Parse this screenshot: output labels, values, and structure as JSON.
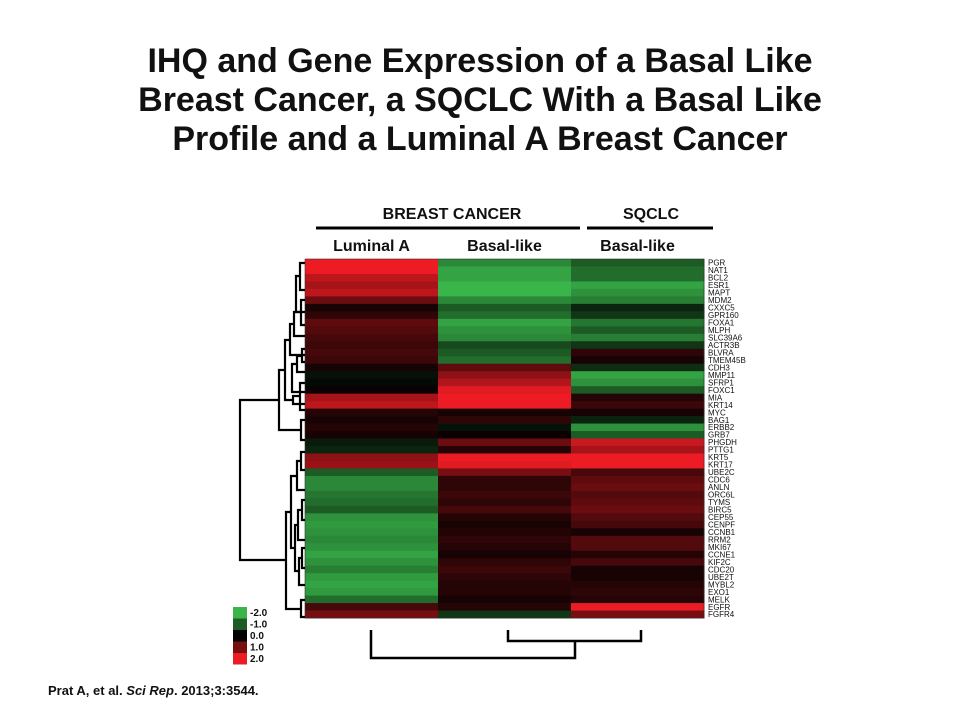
{
  "title_lines": [
    "IHQ and Gene Expression of a Basal Like",
    "Breast Cancer, a SQCLC With a Basal Like",
    "Profile and a Luminal A Breast Cancer"
  ],
  "citation": {
    "before": "Prat A, et al. ",
    "journal": "Sci Rep",
    "after": ". 2013;3:3544."
  },
  "chart_data": {
    "type": "heatmap",
    "group_headers": [
      "BREAST CANCER",
      "SQCLC"
    ],
    "columns": [
      "Luminal A",
      "Basal-like",
      "Basal-like"
    ],
    "genes": [
      "PGR",
      "NAT1",
      "BCL2",
      "ESR1",
      "MAPT",
      "MDM2",
      "CXXC5",
      "GPR160",
      "FOXA1",
      "MLPH",
      "SLC39A6",
      "ACTR3B",
      "BLVRA",
      "TMEM45B",
      "CDH3",
      "MMP11",
      "SFRP1",
      "FOXC1",
      "MIA",
      "KRT14",
      "MYC",
      "BAG1",
      "ERBB2",
      "GRB7",
      "PHGDH",
      "PTTG1",
      "KRT5",
      "KRT17",
      "UBE2C",
      "CDC6",
      "ANLN",
      "ORC6L",
      "TYMS",
      "BIRC5",
      "CEP55",
      "CENPF",
      "CCNB1",
      "RRM2",
      "MKI67",
      "CCNE1",
      "KIF2C",
      "CDC20",
      "UBE2T",
      "MYBL2",
      "EXO1",
      "MELK",
      "EGFR",
      "FGFR4"
    ],
    "values": [
      [
        2.0,
        -1.5,
        -1.0
      ],
      [
        2.0,
        -1.8,
        -1.2
      ],
      [
        1.6,
        -1.8,
        -1.2
      ],
      [
        1.4,
        -2.0,
        -1.8
      ],
      [
        1.6,
        -2.0,
        -1.6
      ],
      [
        0.9,
        -1.5,
        -1.4
      ],
      [
        0.2,
        -1.0,
        -0.4
      ],
      [
        0.4,
        -1.2,
        -0.6
      ],
      [
        0.8,
        -1.8,
        -1.3
      ],
      [
        0.7,
        -1.6,
        -1.0
      ],
      [
        0.6,
        -1.5,
        -1.4
      ],
      [
        0.5,
        -0.8,
        -0.6
      ],
      [
        0.6,
        -1.0,
        0.4
      ],
      [
        0.5,
        -1.2,
        0.2
      ],
      [
        0.2,
        0.8,
        -0.5
      ],
      [
        -0.2,
        1.2,
        -1.8
      ],
      [
        -0.1,
        1.5,
        -1.6
      ],
      [
        0.1,
        1.9,
        -1.0
      ],
      [
        1.4,
        2.0,
        0.3
      ],
      [
        1.6,
        2.0,
        0.5
      ],
      [
        0.3,
        0.2,
        0.2
      ],
      [
        0.2,
        0.4,
        -0.4
      ],
      [
        0.3,
        -0.2,
        -1.6
      ],
      [
        0.2,
        0.1,
        -1.0
      ],
      [
        -0.3,
        0.9,
        1.7
      ],
      [
        -0.4,
        0.3,
        1.4
      ],
      [
        1.2,
        2.0,
        2.0
      ],
      [
        1.3,
        1.9,
        2.0
      ],
      [
        -1.0,
        1.0,
        0.6
      ],
      [
        -1.5,
        0.4,
        0.8
      ],
      [
        -1.5,
        0.4,
        0.9
      ],
      [
        -1.3,
        0.5,
        0.7
      ],
      [
        -1.2,
        0.4,
        0.8
      ],
      [
        -1.0,
        0.6,
        0.9
      ],
      [
        -1.6,
        0.3,
        0.7
      ],
      [
        -1.7,
        0.2,
        0.6
      ],
      [
        -1.6,
        0.3,
        0.2
      ],
      [
        -1.5,
        0.4,
        0.7
      ],
      [
        -1.6,
        0.3,
        0.7
      ],
      [
        -1.8,
        0.2,
        0.3
      ],
      [
        -1.6,
        0.4,
        0.6
      ],
      [
        -1.4,
        0.5,
        0.2
      ],
      [
        -1.7,
        0.4,
        0.2
      ],
      [
        -1.8,
        0.3,
        0.3
      ],
      [
        -1.7,
        0.3,
        0.4
      ],
      [
        -1.2,
        0.2,
        0.3
      ],
      [
        0.6,
        0.3,
        2.0
      ],
      [
        1.0,
        -0.6,
        1.0
      ]
    ],
    "colorscale": {
      "range": [
        -2.0,
        2.0
      ],
      "low": "#39b54a",
      "mid": "#000000",
      "high": "#ed1c24"
    },
    "legend": {
      "placement": "bottom-left",
      "labels": [
        "-2.0",
        "-1.0",
        "0.0",
        "1.0",
        "2.0"
      ],
      "values": [
        -2.0,
        -1.0,
        0.0,
        1.0,
        2.0
      ]
    }
  }
}
